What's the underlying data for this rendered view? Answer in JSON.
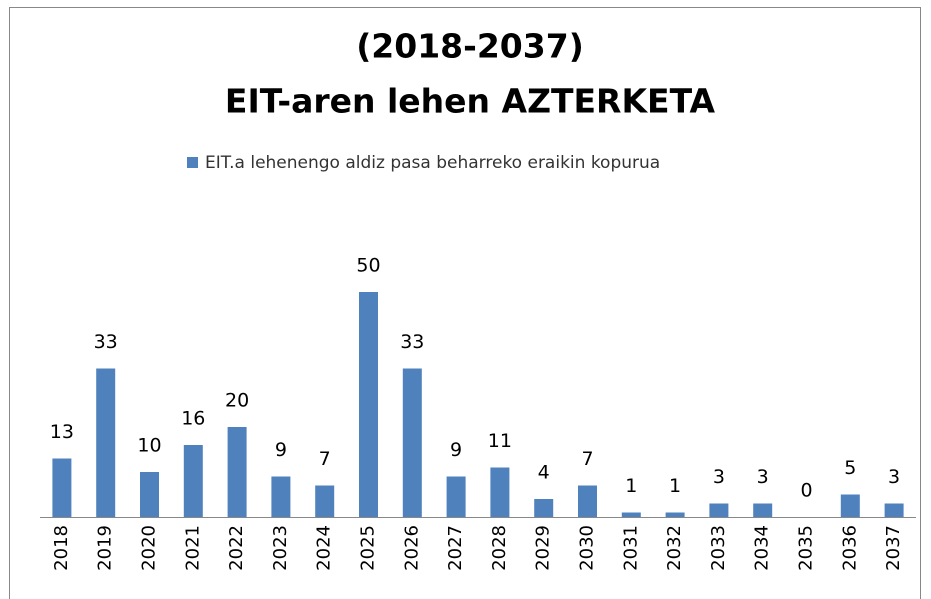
{
  "chart_data": {
    "type": "bar",
    "title": [
      "(2018-2037)",
      "EIT-aren lehen AZTERKETA"
    ],
    "categories": [
      "2018",
      "2019",
      "2020",
      "2021",
      "2022",
      "2023",
      "2024",
      "2025",
      "2026",
      "2027",
      "2028",
      "2029",
      "2030",
      "2031",
      "2032",
      "2033",
      "2034",
      "2035",
      "2036",
      "2037"
    ],
    "series": [
      {
        "name": "EIT.a lehenengo aldiz pasa beharreko eraikin kopurua",
        "color": "#4f81bd",
        "values": [
          13,
          33,
          10,
          16,
          20,
          9,
          7,
          50,
          33,
          9,
          11,
          4,
          7,
          1,
          1,
          3,
          3,
          0,
          5,
          3
        ]
      }
    ],
    "legend": "top",
    "grid": false
  }
}
